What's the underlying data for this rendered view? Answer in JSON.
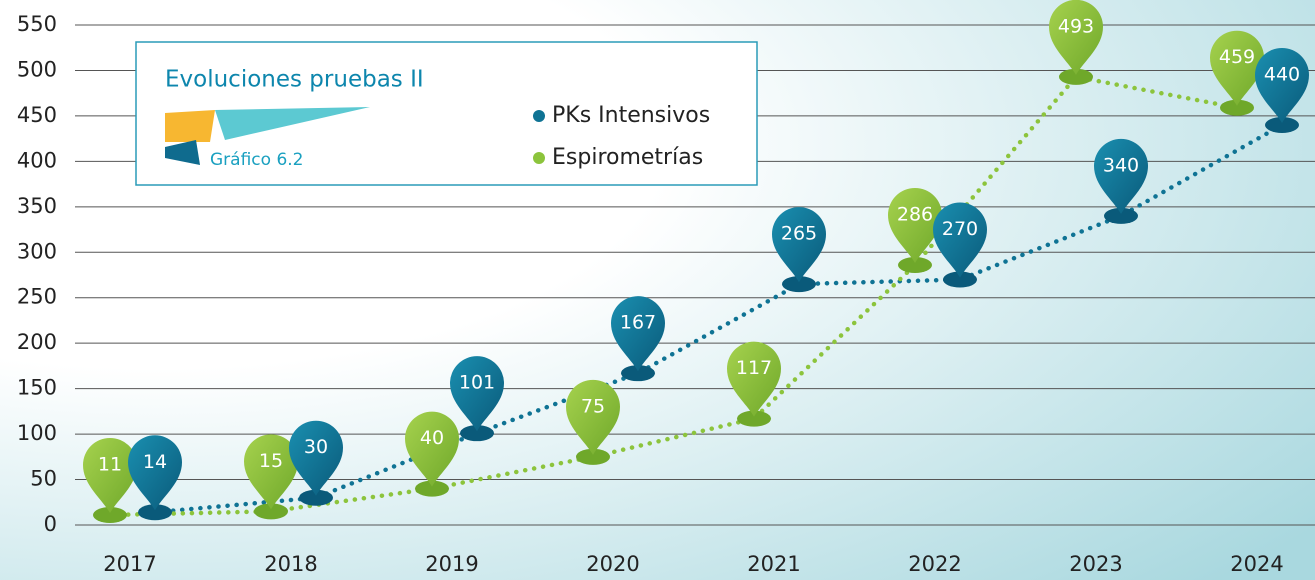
{
  "chart_data": {
    "type": "line",
    "title": "Evoluciones pruebas II",
    "subtitle": "Gráfico 6.2",
    "categories": [
      "2017",
      "2018",
      "2019",
      "2020",
      "2021",
      "2022",
      "2023",
      "2024"
    ],
    "series": [
      {
        "name": "PKs Intensivos",
        "color": "#0f7394",
        "values": [
          14,
          30,
          101,
          167,
          265,
          270,
          340,
          440
        ]
      },
      {
        "name": "Espirometrías",
        "color": "#8cc43c",
        "values": [
          11,
          15,
          40,
          75,
          117,
          286,
          493,
          459
        ]
      }
    ],
    "ylim": [
      0,
      550
    ],
    "yticks": [
      0,
      50,
      100,
      150,
      200,
      250,
      300,
      350,
      400,
      450,
      500,
      550
    ],
    "grid": true
  }
}
